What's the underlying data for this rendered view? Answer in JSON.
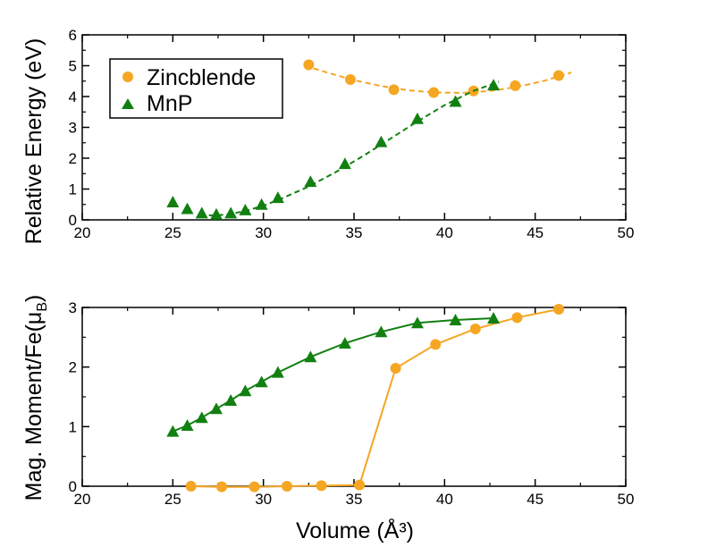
{
  "chart_data": [
    {
      "type": "scatter",
      "xlabel": "",
      "ylabel": "Relative Energy (eV)",
      "xlim": [
        20,
        50
      ],
      "ylim": [
        0,
        6
      ],
      "xticks": [
        "20",
        "25",
        "30",
        "35",
        "40",
        "45",
        "50"
      ],
      "yticks": [
        "0",
        "1",
        "2",
        "3",
        "4",
        "5",
        "6"
      ],
      "legend": "top-left",
      "series": [
        {
          "name": "Zincblende",
          "color": "#f5a623",
          "marker": "circle",
          "line": "dashed-fit",
          "x": [
            32.5,
            34.8,
            37.2,
            39.4,
            41.6,
            43.9,
            46.3
          ],
          "y": [
            5.03,
            4.55,
            4.22,
            4.13,
            4.18,
            4.35,
            4.68
          ],
          "fit_x": [
            32.3,
            33.5,
            35.0,
            36.5,
            38.0,
            39.5,
            41.0,
            42.5,
            44.0,
            45.5,
            47.0
          ],
          "fit_y": [
            5.0,
            4.78,
            4.53,
            4.34,
            4.2,
            4.13,
            4.12,
            4.18,
            4.31,
            4.51,
            4.78
          ]
        },
        {
          "name": "MnP",
          "color": "#118011",
          "marker": "triangle",
          "line": "dashed-fit",
          "x": [
            25.0,
            25.8,
            26.6,
            27.4,
            28.2,
            29.0,
            29.9,
            30.8,
            32.6,
            34.5,
            36.5,
            38.5,
            40.6,
            42.7
          ],
          "y": [
            0.58,
            0.36,
            0.22,
            0.18,
            0.22,
            0.32,
            0.5,
            0.72,
            1.24,
            1.82,
            2.53,
            3.28,
            3.84,
            4.37
          ],
          "fit_x": [
            26.5,
            27.3,
            28.2,
            29.0,
            30.0,
            31.0,
            32.5,
            34.0,
            35.5,
            37.0,
            38.5,
            40.0,
            41.5,
            43.0
          ],
          "fit_y": [
            0.17,
            0.14,
            0.19,
            0.29,
            0.46,
            0.69,
            1.08,
            1.55,
            2.07,
            2.63,
            3.19,
            3.72,
            4.16,
            4.48
          ]
        }
      ]
    },
    {
      "type": "line",
      "xlabel": "Volume (Å³)",
      "ylabel_main": "Mag. Moment/Fe(μ",
      "ylabel_sub": "B",
      "ylabel_end": ")",
      "xlim": [
        20,
        50
      ],
      "ylim": [
        0,
        3
      ],
      "xticks": [
        "20",
        "25",
        "30",
        "35",
        "40",
        "45",
        "50"
      ],
      "yticks": [
        "0",
        "1",
        "2",
        "3"
      ],
      "series": [
        {
          "name": "Zincblende",
          "color": "#f5a623",
          "marker": "circle",
          "x": [
            26.0,
            27.7,
            29.5,
            31.3,
            33.2,
            35.3,
            37.3,
            39.5,
            41.7,
            44.0,
            46.3
          ],
          "y": [
            0.0,
            -0.01,
            -0.01,
            0.0,
            0.01,
            0.02,
            1.98,
            2.38,
            2.64,
            2.83,
            2.97
          ]
        },
        {
          "name": "MnP",
          "color": "#118011",
          "marker": "triangle",
          "x": [
            25.0,
            25.8,
            26.6,
            27.4,
            28.2,
            29.0,
            29.9,
            30.8,
            32.6,
            34.5,
            36.5,
            38.5,
            40.6,
            42.7
          ],
          "y": [
            0.92,
            1.02,
            1.15,
            1.3,
            1.44,
            1.6,
            1.75,
            1.91,
            2.17,
            2.4,
            2.59,
            2.74,
            2.79,
            2.82
          ]
        }
      ]
    }
  ]
}
